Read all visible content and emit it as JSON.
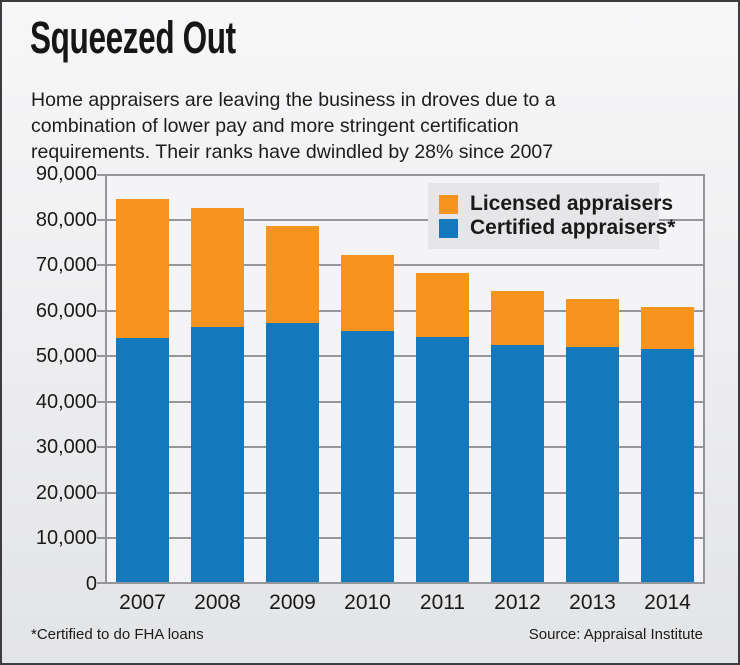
{
  "title": "Squeezed Out",
  "subtitle": "Home appraisers are leaving the business in droves due to a combination of lower pay and more stringent certification requirements. Their ranks have dwindled by 28% since 2007",
  "subtitle_lines": [
    "Home appraisers are leaving the business in droves due to a",
    "combination of lower pay and more stringent certification",
    "requirements. Their ranks have dwindled by 28% since 2007"
  ],
  "footnote": "*Certified to do FHA loans",
  "source": "Source: Appraisal Institute",
  "colors": {
    "licensed_orange": "#F7941E",
    "certified_blue": "#1478BD",
    "grid_gray": "#94969A",
    "text": "#1A1A1A",
    "legend_bg": "#E6E6E9",
    "plot_bg": "#F4F4F6"
  },
  "chart_data": {
    "type": "bar",
    "stacked": true,
    "title": "Squeezed Out",
    "xlabel": "",
    "ylabel": "",
    "categories": [
      "2007",
      "2008",
      "2009",
      "2010",
      "2011",
      "2012",
      "2013",
      "2014"
    ],
    "series": [
      {
        "name": "Certified appraisers*",
        "color": "#1478BD",
        "stack_position": "bottom",
        "values": [
          54000,
          56500,
          57200,
          55500,
          54300,
          52500,
          52000,
          51500
        ]
      },
      {
        "name": "Licensed appraisers",
        "color": "#F7941E",
        "stack_position": "top",
        "values": [
          30500,
          26000,
          21500,
          16700,
          14000,
          11900,
          10600,
          9400
        ]
      }
    ],
    "totals": [
      84500,
      82500,
      78700,
      72200,
      68300,
      64400,
      62600,
      60900
    ],
    "ylim": [
      0,
      90000
    ],
    "ytick_step": 10000,
    "ytick_labels": [
      "0",
      "10,000",
      "20,000",
      "30,000",
      "40,000",
      "50,000",
      "60,000",
      "70,000",
      "80,000",
      "90,000"
    ],
    "grid": true,
    "legend_position": "top-right"
  },
  "legend": {
    "items": [
      {
        "label": "Licensed appraisers",
        "color": "#F7941E"
      },
      {
        "label": "Certified appraisers*",
        "color": "#1478BD"
      }
    ]
  }
}
